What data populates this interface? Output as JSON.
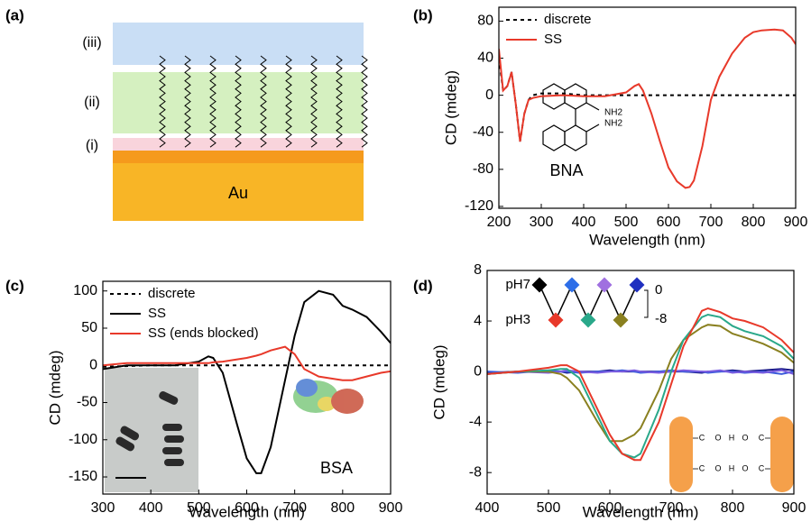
{
  "diagram": {
    "label": "(a)",
    "layers": [
      "(iii)",
      "(ii)",
      "(i)"
    ],
    "substrate": "Au"
  },
  "chart_data": [
    {
      "type": "line",
      "label": "(b)",
      "x_label": "Wavelength (nm)",
      "y_label": "CD (mdeg)",
      "xlim": [
        200,
        900
      ],
      "ylim": [
        -122,
        95
      ],
      "xticks": [
        200,
        300,
        400,
        500,
        600,
        700,
        800,
        900
      ],
      "yticks": [
        -120,
        -80,
        -40,
        0,
        40,
        80
      ],
      "legend": "upper left",
      "annotations": [
        "BNA",
        "NH2",
        "NH2"
      ],
      "x": [
        200,
        210,
        220,
        230,
        240,
        250,
        260,
        270,
        280,
        300,
        350,
        400,
        450,
        500,
        520,
        530,
        540,
        560,
        580,
        600,
        620,
        640,
        650,
        660,
        680,
        700,
        720,
        750,
        780,
        800,
        820,
        850,
        870,
        890,
        900
      ],
      "series": [
        {
          "name": "discrete",
          "color": "#000000",
          "linestyle": "dashed",
          "values": [
            40,
            5,
            10,
            25,
            -10,
            -50,
            -20,
            -5,
            0,
            2,
            2,
            0,
            0,
            0,
            0,
            0,
            0,
            0,
            0,
            0,
            0,
            0,
            0,
            0,
            0,
            0,
            0,
            0,
            0,
            0,
            0,
            0,
            0,
            0,
            0
          ]
        },
        {
          "name": "SS",
          "color": "#e8392a",
          "linestyle": "solid",
          "values": [
            50,
            5,
            10,
            25,
            -10,
            -50,
            -20,
            -5,
            -3,
            -1,
            0,
            -1,
            -1,
            3,
            10,
            12,
            5,
            -20,
            -50,
            -78,
            -93,
            -100,
            -99,
            -92,
            -55,
            -5,
            20,
            45,
            62,
            68,
            70,
            71,
            70,
            62,
            55
          ]
        }
      ]
    },
    {
      "type": "line",
      "label": "(c)",
      "x_label": "Wavelength (nm)",
      "y_label": "CD (mdeg)",
      "xlim": [
        300,
        900
      ],
      "ylim": [
        -173,
        113
      ],
      "xticks": [
        300,
        400,
        500,
        600,
        700,
        800,
        900
      ],
      "yticks": [
        -150,
        -100,
        -50,
        0,
        50,
        100
      ],
      "legend": "upper left",
      "annotations": [
        "BSA"
      ],
      "x": [
        300,
        350,
        400,
        450,
        500,
        520,
        530,
        550,
        580,
        600,
        620,
        630,
        650,
        680,
        700,
        720,
        750,
        780,
        800,
        820,
        850,
        880,
        900
      ],
      "series": [
        {
          "name": "discrete",
          "color": "#000000",
          "linestyle": "dashed",
          "values": [
            -2,
            -1,
            0,
            0,
            0,
            0,
            0,
            0,
            0,
            0,
            0,
            0,
            0,
            0,
            0,
            0,
            0,
            0,
            0,
            0,
            0,
            0,
            0
          ]
        },
        {
          "name": "SS",
          "color": "#000000",
          "linestyle": "solid",
          "values": [
            -5,
            0,
            0,
            0,
            5,
            12,
            10,
            -10,
            -80,
            -125,
            -145,
            -145,
            -110,
            -20,
            40,
            85,
            100,
            95,
            80,
            75,
            65,
            45,
            30
          ]
        },
        {
          "name": "SS (ends blocked)",
          "color": "#e8392a",
          "linestyle": "solid",
          "values": [
            0,
            3,
            3,
            3,
            3,
            3,
            4,
            5,
            8,
            10,
            13,
            15,
            20,
            25,
            15,
            -5,
            -15,
            -18,
            -20,
            -20,
            -15,
            -10,
            -8
          ]
        }
      ]
    },
    {
      "type": "line",
      "label": "(d)",
      "x_label": "Wavelength (nm)",
      "y_label": "CD (mdeg)",
      "xlim": [
        400,
        900
      ],
      "ylim": [
        -9.7,
        8
      ],
      "xticks": [
        400,
        500,
        600,
        700,
        800,
        900
      ],
      "yticks": [
        -8,
        -4,
        0,
        4,
        8
      ],
      "inset": {
        "labels": [
          "pH7",
          "pH3"
        ],
        "scale_labels": [
          "0",
          "-8"
        ],
        "colors": [
          "#000000",
          "#e8392a",
          "#2d6ee8",
          "#2aa88a",
          "#a070e0",
          "#8a8020",
          "#2030c0"
        ]
      },
      "structure_labels": [
        "C",
        "O",
        "H",
        "O",
        "C"
      ],
      "x": [
        400,
        450,
        500,
        520,
        530,
        550,
        580,
        600,
        620,
        640,
        650,
        680,
        700,
        720,
        750,
        760,
        780,
        800,
        820,
        850,
        880,
        900
      ],
      "series": [
        {
          "color": "#1a1a8a",
          "linestyle": "solid",
          "values": [
            -0.1,
            0,
            0,
            0,
            -0.1,
            0,
            0,
            0.1,
            0,
            0,
            0,
            0,
            0,
            0,
            -0.1,
            0,
            0,
            0.1,
            0,
            0.1,
            0.2,
            0.1
          ]
        },
        {
          "color": "#3b5bdb",
          "linestyle": "solid",
          "values": [
            0,
            -0.1,
            0.1,
            0,
            0,
            -0.1,
            0,
            0,
            0.1,
            0,
            -0.1,
            0,
            0.1,
            0,
            0,
            -0.1,
            0,
            0,
            -0.1,
            0,
            -0.2,
            0
          ]
        },
        {
          "color": "#7a5ce0",
          "linestyle": "solid",
          "values": [
            -0.2,
            0,
            -0.1,
            0,
            0.1,
            0,
            -0.1,
            0,
            0,
            0.1,
            0,
            -0.1,
            0,
            0.1,
            0,
            0,
            0.1,
            -0.1,
            0,
            -0.1,
            0.1,
            -0.2
          ]
        },
        {
          "color": "#8a8020",
          "linestyle": "solid",
          "values": [
            -0.2,
            0,
            0,
            -0.2,
            -0.5,
            -1.5,
            -4,
            -5.5,
            -5.5,
            -5,
            -4.5,
            -1.5,
            1,
            2.5,
            3.5,
            3.7,
            3.6,
            3,
            2.7,
            2.2,
            1.5,
            0.7
          ]
        },
        {
          "color": "#2aa88a",
          "linestyle": "solid",
          "values": [
            -0.2,
            0,
            0.1,
            0.2,
            0.2,
            -0.5,
            -3.5,
            -5.5,
            -6.5,
            -6.8,
            -6.5,
            -3,
            0,
            2.5,
            4.3,
            4.5,
            4.3,
            3.6,
            3.2,
            2.8,
            2,
            1
          ]
        },
        {
          "color": "#e8392a",
          "linestyle": "solid",
          "values": [
            -0.2,
            0,
            0.3,
            0.5,
            0.5,
            0,
            -3,
            -5,
            -6.5,
            -7,
            -7,
            -4,
            -1,
            2,
            4.8,
            5,
            4.7,
            4.2,
            4,
            3.5,
            2.5,
            1.5
          ]
        }
      ]
    }
  ]
}
